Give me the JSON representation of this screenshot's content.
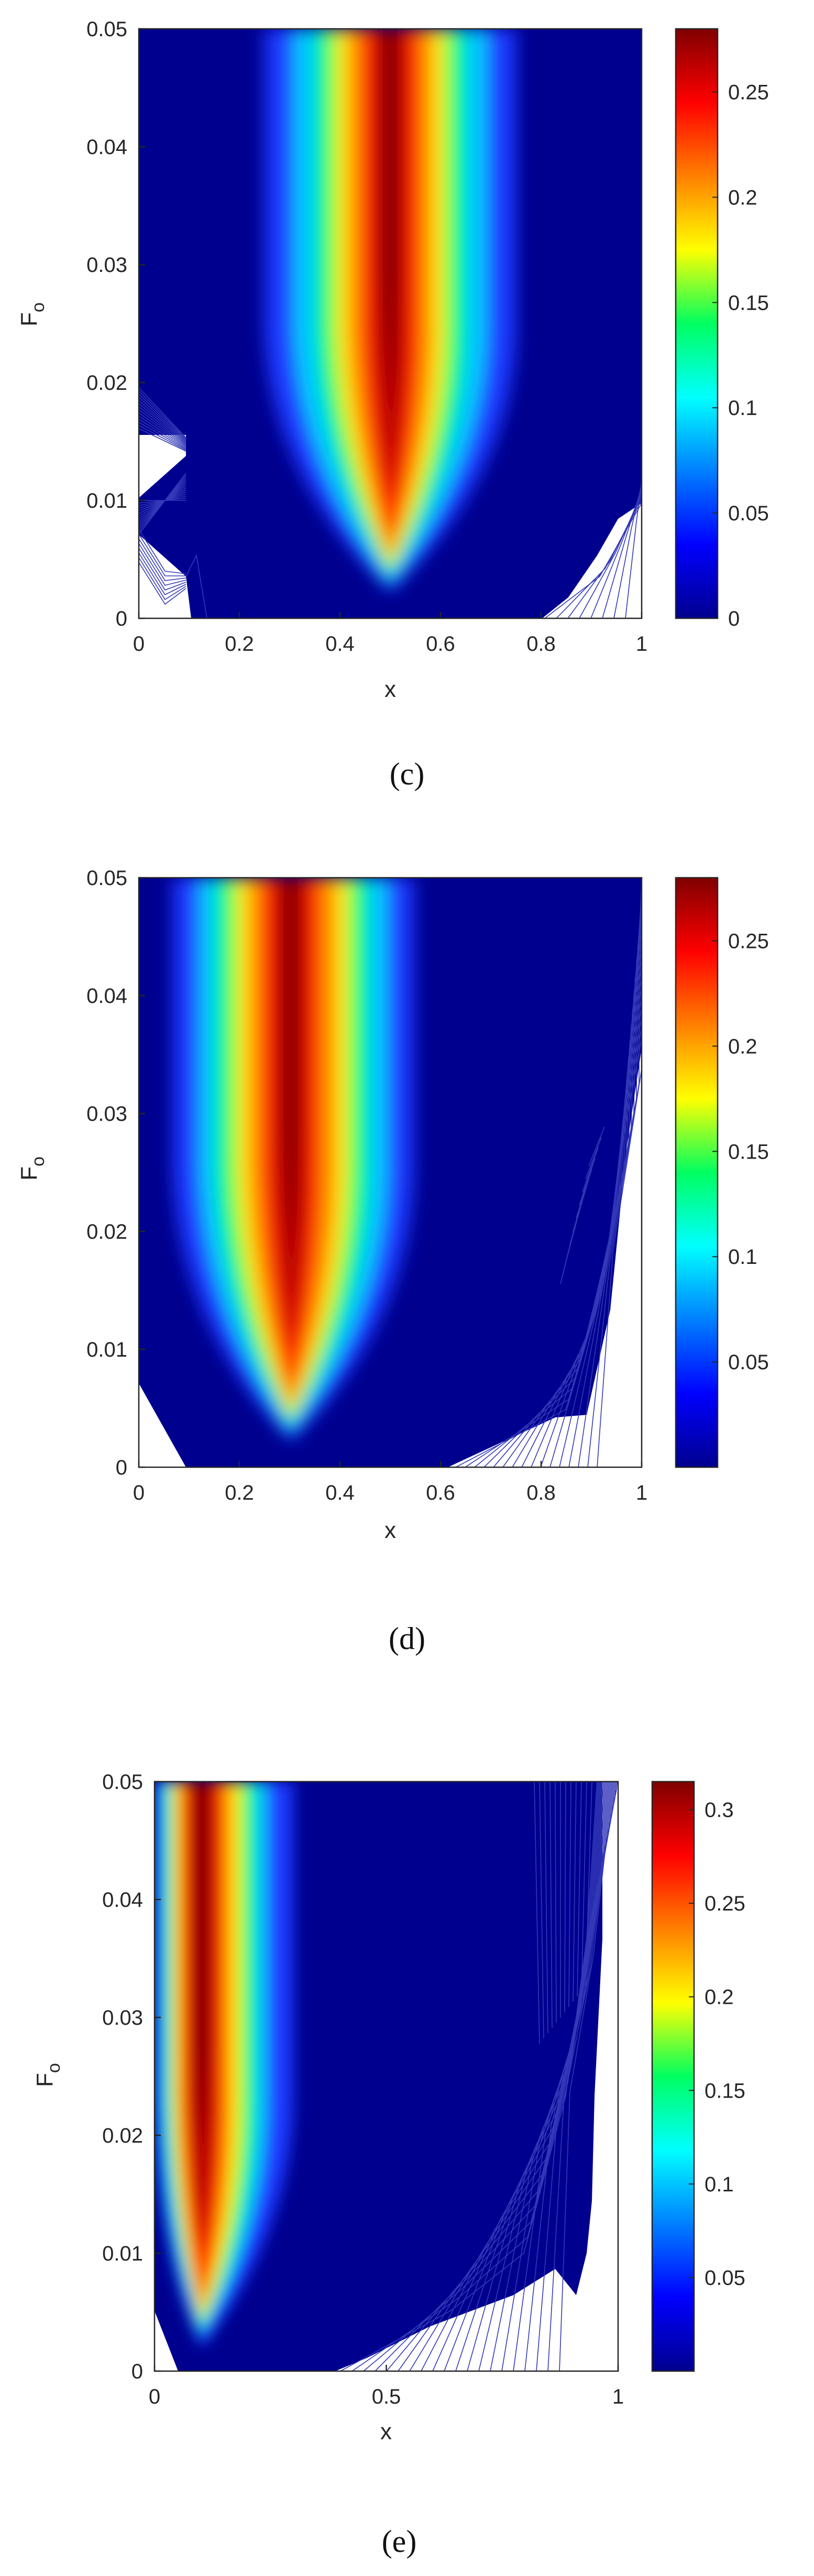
{
  "colormap": "jet",
  "colors": {
    "deep_blue": "#00008f",
    "contour_line": "#3338b8",
    "axis": "#262626"
  },
  "chart_data": [
    {
      "type": "heatmap",
      "caption": "(c)",
      "xlabel": "x",
      "ylabel": "F",
      "ylabel_subscript": "o",
      "xlim": [
        0,
        1
      ],
      "ylim": [
        0,
        0.05
      ],
      "x_ticks": [
        "0",
        "0.2",
        "0.4",
        "0.6",
        "0.8",
        "1"
      ],
      "y_ticks": [
        "0",
        "0.01",
        "0.02",
        "0.03",
        "0.04",
        "0.05"
      ],
      "peak_x": 0.5,
      "peak_value": 0.28,
      "colorbar": {
        "min": 0,
        "max": 0.28,
        "ticks": [
          "0",
          "0.05",
          "0.1",
          "0.15",
          "0.2",
          "0.25"
        ]
      }
    },
    {
      "type": "heatmap",
      "caption": "(d)",
      "xlabel": "x",
      "ylabel": "F",
      "ylabel_subscript": "o",
      "xlim": [
        0,
        1
      ],
      "ylim": [
        0,
        0.05
      ],
      "x_ticks": [
        "0",
        "0.2",
        "0.4",
        "0.6",
        "0.8",
        "1"
      ],
      "y_ticks": [
        "0",
        "0.01",
        "0.02",
        "0.03",
        "0.04",
        "0.05"
      ],
      "peak_x": 0.3,
      "peak_value": 0.28,
      "colorbar": {
        "min": 0,
        "max": 0.28,
        "ticks": [
          "0.05",
          "0.1",
          "0.15",
          "0.2",
          "0.25"
        ]
      }
    },
    {
      "type": "heatmap",
      "caption": "(e)",
      "xlabel": "x",
      "ylabel": "F",
      "ylabel_subscript": "o",
      "xlim": [
        0,
        1
      ],
      "ylim": [
        0,
        0.05
      ],
      "x_ticks": [
        "0",
        "0.5",
        "1"
      ],
      "y_ticks": [
        "0",
        "0.01",
        "0.02",
        "0.03",
        "0.04",
        "0.05"
      ],
      "peak_x": 0.1,
      "peak_value": 0.315,
      "colorbar": {
        "min": 0,
        "max": 0.315,
        "ticks": [
          "0.05",
          "0.1",
          "0.15",
          "0.2",
          "0.25",
          "0.3"
        ]
      }
    }
  ]
}
